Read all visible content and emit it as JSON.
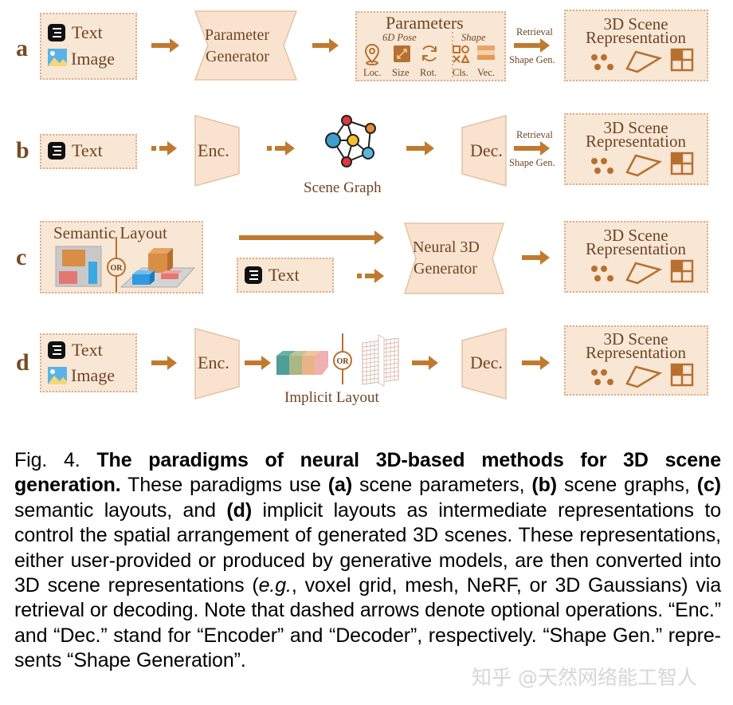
{
  "colors": {
    "box_fill": "#f9e7d6",
    "box_border": "#dcae86",
    "arrow": "#c07a30",
    "text": "#6e4524",
    "accent_dark": "#b8702e"
  },
  "rows": [
    {
      "label": "a",
      "inputs": [
        "Text",
        "Image"
      ],
      "generator": [
        "Parameter",
        "Generator"
      ],
      "parameters": {
        "title": "Parameters",
        "pose_label": "6D Pose",
        "shape_label": "Shape",
        "items": [
          {
            "label": "Loc.",
            "icon": "location-pin-icon"
          },
          {
            "label": "Size",
            "icon": "resize-icon"
          },
          {
            "label": "Rot.",
            "icon": "rotate-icon"
          },
          {
            "label": "Cls.",
            "icon": "shape-classes-icon"
          },
          {
            "label": "Vec.",
            "icon": "vector-bars-icon"
          }
        ]
      },
      "arrow_top": "Retrieval",
      "arrow_bottom": "Shape Gen.",
      "output": [
        "3D Scene",
        "Representation"
      ]
    },
    {
      "label": "b",
      "inputs": [
        "Text"
      ],
      "encoder": "Enc.",
      "middle": "Scene Graph",
      "decoder": "Dec.",
      "arrow_top": "Retrieval",
      "arrow_bottom": "Shape Gen.",
      "output": [
        "3D Scene",
        "Representation"
      ]
    },
    {
      "label": "c",
      "layout_title": "Semantic Layout",
      "or": "OR",
      "inputs": [
        "Text"
      ],
      "generator": [
        "Neural 3D",
        "Generator"
      ],
      "output": [
        "3D Scene",
        "Representation"
      ]
    },
    {
      "label": "d",
      "inputs": [
        "Text",
        "Image"
      ],
      "encoder": "Enc.",
      "or": "OR",
      "middle": "Implicit Layout",
      "decoder": "Dec.",
      "output": [
        "3D Scene",
        "Representation"
      ]
    }
  ],
  "caption": {
    "fig": "Fig. 4. ",
    "title": "The paradigms of neural 3D-based methods for 3D scene generation.",
    "p1": " These paradigms use ",
    "a": "(a)",
    "p2": " scene parameters, ",
    "b": "(b)",
    "p3": " scene graphs, ",
    "c": "(c)",
    "p4": " semantic layouts, and ",
    "d": "(d)",
    "p5": " implicit layouts as intermediate representations to control the spatial arrangement of generated 3D scenes. These representations, either user-provided or produced by generative models, are then converted into 3D scene representations (",
    "eg": "e.g.",
    "p6": ", voxel grid, mesh, NeRF, or 3D Gaussians) via retrieval or decoding. Note that dashed arrows denote optional operations. “Enc.” and “Dec.” stand for “Encoder” and “Decoder”, respectively. “Shape Gen.” repre­sents “Shape Generation”."
  },
  "watermark": "知乎 @天然网络能工智人"
}
